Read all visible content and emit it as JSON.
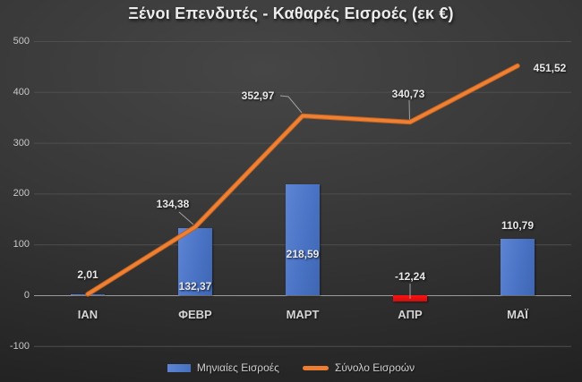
{
  "title": "Ξένοι Επενδυτές - Καθαρές Εισροές (εκ €)",
  "colors": {
    "background_dark": "#2a2a2a",
    "bar_blue": "#4472C4",
    "bar_negative_red": "#F01010",
    "line_orange": "#ED7D31",
    "gridline": "#4e4e4e",
    "zero_axis": "#9b9b9b",
    "text_light": "#e9e9e9"
  },
  "chart_data": {
    "type": "combo",
    "title": "Ξένοι Επενδυτές - Καθαρές Εισροές (εκ €)",
    "categories": [
      "ΙΑΝ",
      "ΦΕΒΡ",
      "ΜΑΡΤ",
      "ΑΠΡ",
      "ΜΑΪ"
    ],
    "series": [
      {
        "name": "Μηνιαίες Εισροές",
        "type": "bar",
        "values": [
          2.01,
          132.37,
          218.59,
          -12.24,
          110.79
        ],
        "labels": [
          "2,01",
          "132,37",
          "218,59",
          "-12,24",
          "110,79"
        ],
        "color": "#4472C4",
        "negative_color": "#F01010"
      },
      {
        "name": "Σύνολο Εισροών",
        "type": "line",
        "values": [
          2.01,
          134.38,
          352.97,
          340.73,
          451.52
        ],
        "labels": [
          null,
          "134,38",
          "352,97",
          "340,73",
          "451,52"
        ],
        "color": "#ED7D31"
      }
    ],
    "ylim": [
      -100,
      500
    ],
    "yticks": [
      -100,
      0,
      100,
      200,
      300,
      400,
      500
    ],
    "ytick_labels": [
      "-100",
      "0",
      "100",
      "200",
      "300",
      "400",
      "500"
    ],
    "grid": true,
    "legend_position": "bottom"
  }
}
